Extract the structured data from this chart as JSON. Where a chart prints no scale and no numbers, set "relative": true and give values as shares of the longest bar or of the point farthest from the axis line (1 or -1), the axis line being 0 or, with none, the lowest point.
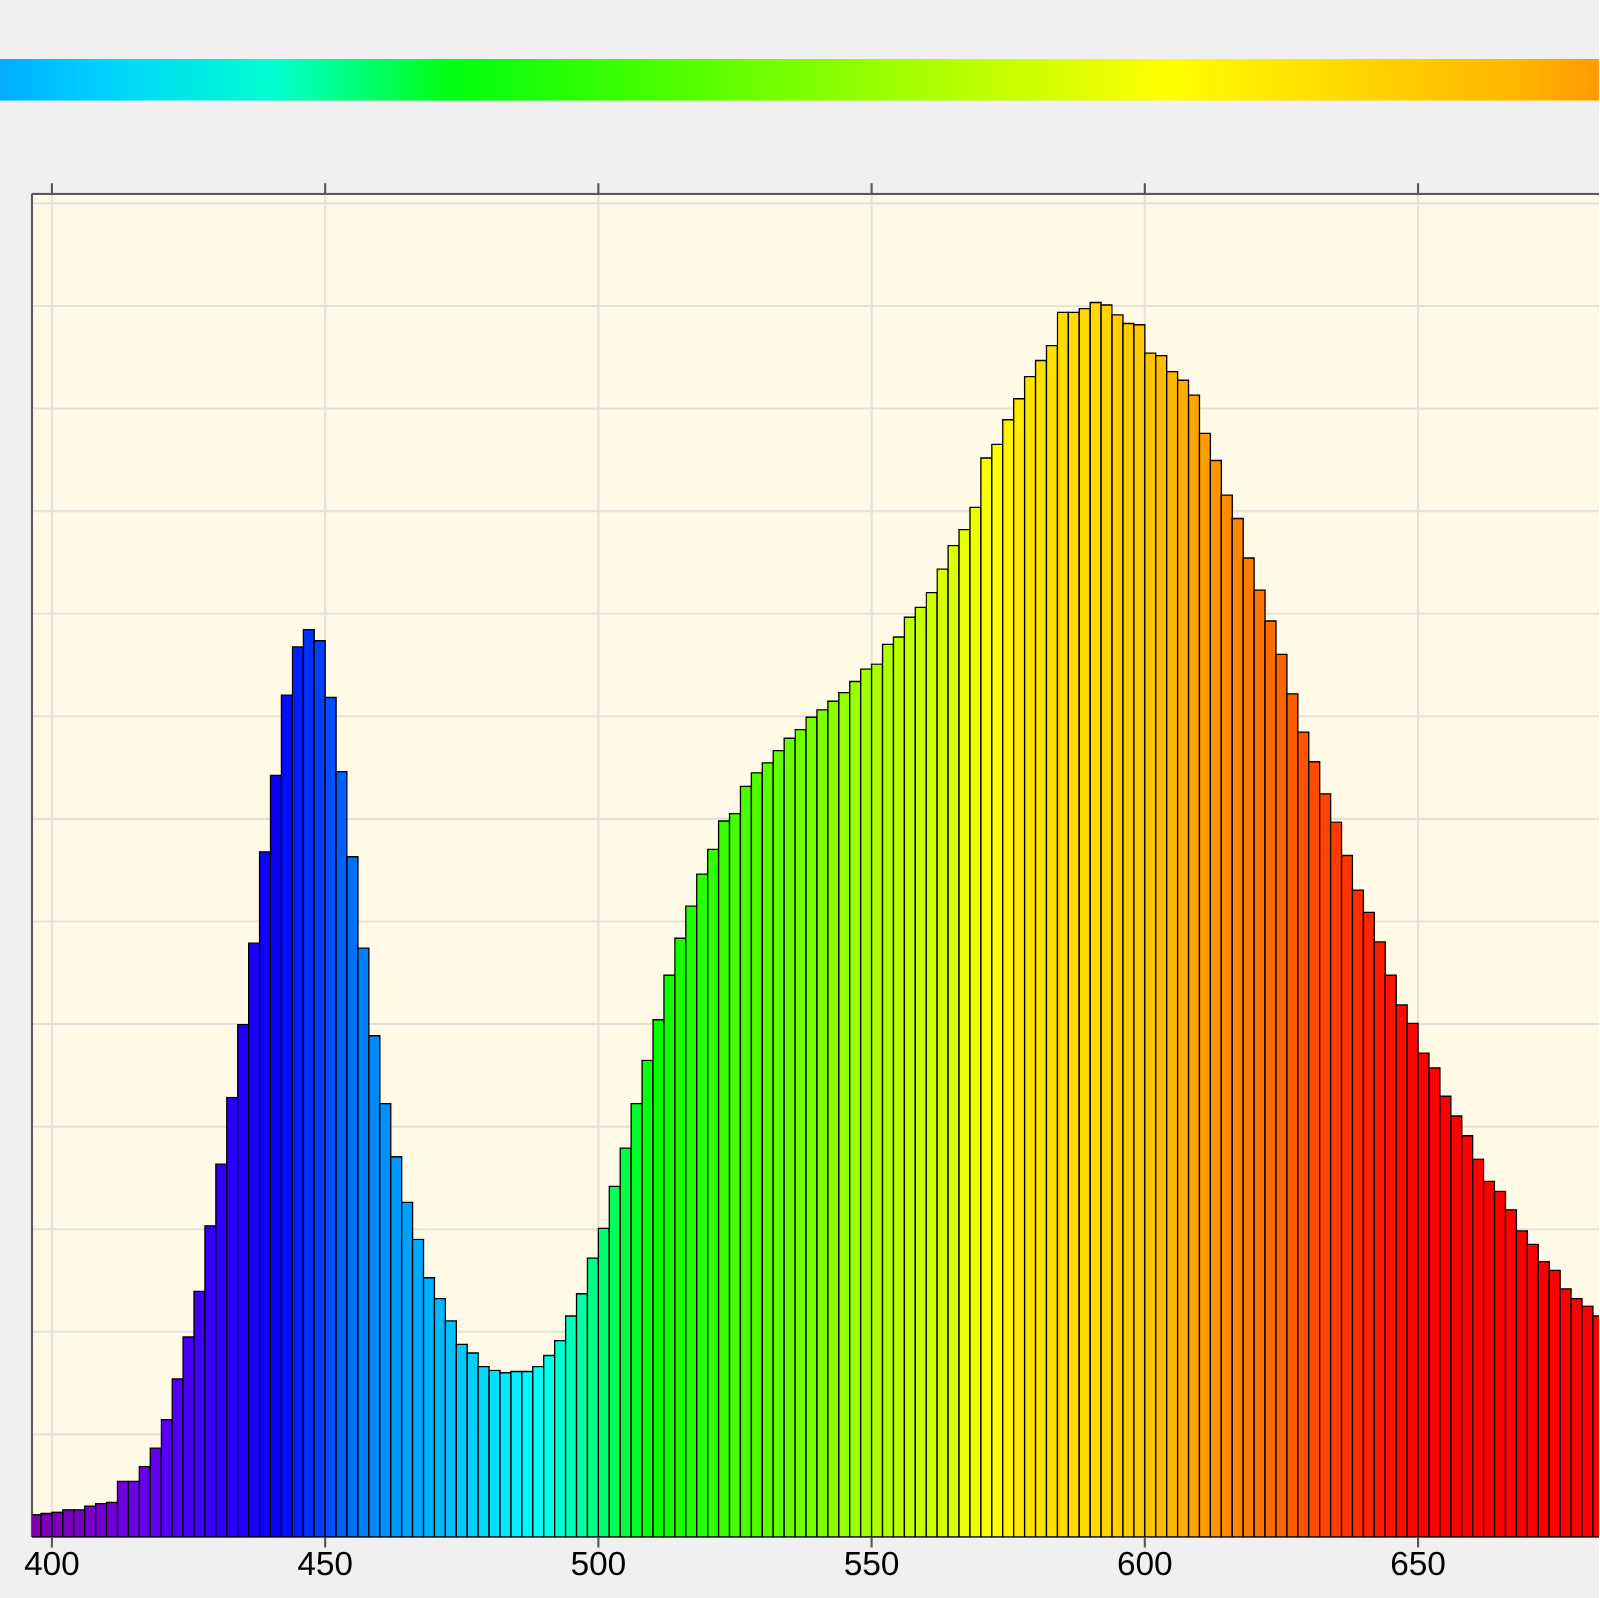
{
  "chart_data": {
    "type": "bar",
    "relative": true,
    "grid": true,
    "xlim": [
      396.35,
      683.1
    ],
    "xticks": [
      400,
      450,
      500,
      550,
      600,
      650
    ],
    "x": [
      397,
      399,
      401,
      403,
      405,
      407,
      409,
      411,
      413,
      415,
      417,
      419,
      421,
      423,
      425,
      427,
      429,
      431,
      433,
      435,
      437,
      439,
      441,
      443,
      445,
      447,
      449,
      451,
      453,
      455,
      457,
      459,
      461,
      463,
      465,
      467,
      469,
      471,
      473,
      475,
      477,
      479,
      481,
      483,
      485,
      487,
      489,
      491,
      493,
      495,
      497,
      499,
      501,
      503,
      505,
      507,
      509,
      511,
      513,
      515,
      517,
      519,
      521,
      523,
      525,
      527,
      529,
      531,
      533,
      535,
      537,
      539,
      541,
      543,
      545,
      547,
      549,
      551,
      553,
      555,
      557,
      559,
      561,
      563,
      565,
      567,
      569,
      571,
      573,
      575,
      577,
      579,
      581,
      583,
      585,
      587,
      589,
      591,
      593,
      595,
      597,
      599,
      601,
      603,
      605,
      607,
      609,
      611,
      613,
      615,
      617,
      619,
      621,
      623,
      625,
      627,
      629,
      631,
      633,
      635,
      637,
      639,
      641,
      643,
      645,
      647,
      649,
      651,
      653,
      655,
      657,
      659,
      661,
      663,
      665,
      667,
      669,
      671,
      673,
      675,
      677,
      679,
      681,
      683
    ],
    "values": [
      0.018,
      0.019,
      0.02,
      0.022,
      0.022,
      0.025,
      0.027,
      0.028,
      0.045,
      0.045,
      0.057,
      0.072,
      0.095,
      0.128,
      0.162,
      0.199,
      0.252,
      0.302,
      0.356,
      0.415,
      0.481,
      0.555,
      0.617,
      0.682,
      0.721,
      0.735,
      0.726,
      0.68,
      0.62,
      0.551,
      0.477,
      0.406,
      0.351,
      0.308,
      0.271,
      0.241,
      0.21,
      0.193,
      0.175,
      0.156,
      0.149,
      0.138,
      0.135,
      0.133,
      0.134,
      0.134,
      0.138,
      0.147,
      0.159,
      0.179,
      0.197,
      0.226,
      0.25,
      0.284,
      0.315,
      0.351,
      0.386,
      0.419,
      0.455,
      0.485,
      0.511,
      0.537,
      0.557,
      0.58,
      0.586,
      0.608,
      0.619,
      0.627,
      0.637,
      0.647,
      0.654,
      0.664,
      0.67,
      0.677,
      0.684,
      0.693,
      0.703,
      0.707,
      0.723,
      0.729,
      0.745,
      0.753,
      0.765,
      0.784,
      0.803,
      0.816,
      0.834,
      0.874,
      0.885,
      0.905,
      0.922,
      0.94,
      0.953,
      0.965,
      0.992,
      0.992,
      0.995,
      1.0,
      0.998,
      0.99,
      0.983,
      0.982,
      0.959,
      0.957,
      0.944,
      0.937,
      0.925,
      0.894,
      0.872,
      0.844,
      0.825,
      0.793,
      0.767,
      0.742,
      0.715,
      0.683,
      0.652,
      0.628,
      0.602,
      0.579,
      0.552,
      0.524,
      0.506,
      0.482,
      0.455,
      0.431,
      0.416,
      0.392,
      0.38,
      0.357,
      0.341,
      0.325,
      0.306,
      0.288,
      0.28,
      0.265,
      0.248,
      0.237,
      0.223,
      0.216,
      0.201,
      0.193,
      0.187,
      0.179
    ],
    "colors": [
      "#8000b0",
      "#7e00b4",
      "#7c00b8",
      "#7a00bc",
      "#7800c0",
      "#7600c8",
      "#7400d0",
      "#7200d8",
      "#7000e0",
      "#6c00e6",
      "#6800ec",
      "#6400f0",
      "#5800f4",
      "#5000f6",
      "#4800f8",
      "#4000fa",
      "#3800fc",
      "#3000fd",
      "#2800fe",
      "#2000ff",
      "#1800ff",
      "#1000ff",
      "#0800ff",
      "#0010ff",
      "#0020ff",
      "#0030ff",
      "#0040ff",
      "#0050ff",
      "#0060ff",
      "#0070ff",
      "#0080ff",
      "#0088ff",
      "#0090ff",
      "#0098ff",
      "#00a0ff",
      "#00a8ff",
      "#00b0ff",
      "#00b8ff",
      "#00c0ff",
      "#00c8ff",
      "#00d0ff",
      "#00d8ff",
      "#00e0ff",
      "#00e8ff",
      "#00f0ff",
      "#00f8ff",
      "#00fff8",
      "#00ffe8",
      "#00ffd0",
      "#00ffb8",
      "#00ffa0",
      "#00ff88",
      "#00ff70",
      "#00ff58",
      "#00ff40",
      "#00ff28",
      "#00ff10",
      "#08ff00",
      "#10ff00",
      "#18ff00",
      "#20ff00",
      "#28ff00",
      "#30ff00",
      "#38ff00",
      "#40ff00",
      "#48ff00",
      "#50ff00",
      "#58ff00",
      "#60ff00",
      "#68ff00",
      "#70ff00",
      "#78ff00",
      "#80ff00",
      "#88ff00",
      "#90ff00",
      "#98ff00",
      "#a0ff00",
      "#a8ff00",
      "#b0ff00",
      "#b8ff00",
      "#c0ff00",
      "#c8ff00",
      "#d0ff00",
      "#d8ff00",
      "#e0ff00",
      "#e8ff00",
      "#f0ff00",
      "#f8ff00",
      "#ffff00",
      "#fff400",
      "#ffea00",
      "#ffe400",
      "#ffe000",
      "#ffde00",
      "#ffdc00",
      "#ffda00",
      "#ffd800",
      "#ffd600",
      "#ffd400",
      "#ffd000",
      "#ffcc00",
      "#ffc800",
      "#ffc400",
      "#ffbc00",
      "#ffb400",
      "#ffac00",
      "#ffa400",
      "#ff9c00",
      "#ff9400",
      "#ff8c00",
      "#ff8400",
      "#ff7c00",
      "#ff7400",
      "#ff6c00",
      "#ff6400",
      "#ff5c00",
      "#ff5400",
      "#ff4c00",
      "#ff4400",
      "#ff3c00",
      "#ff3400",
      "#ff2c00",
      "#ff2400",
      "#ff1c00",
      "#ff1400",
      "#ff0c00",
      "#ff0400",
      "#ff0000",
      "#ff0000",
      "#ff0000",
      "#ff0000",
      "#ff0000",
      "#ff0000",
      "#ff0000",
      "#ff0000",
      "#ff0000",
      "#ff0000",
      "#ff0000",
      "#ff0000",
      "#ff0000",
      "#ff0000",
      "#ff0000",
      "#ff0000",
      "#ff0000"
    ]
  }
}
